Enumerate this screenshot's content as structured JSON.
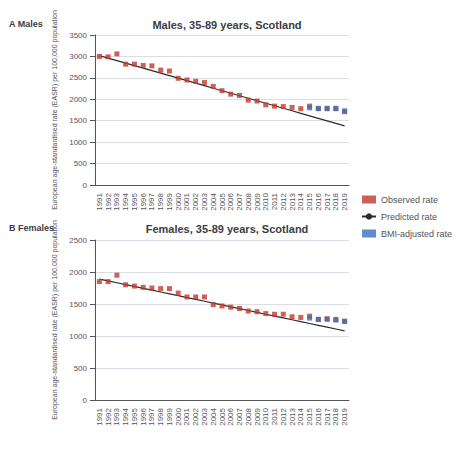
{
  "chart_data": [
    {
      "type": "line",
      "title": "Males, 35-89 years, Scotland",
      "annotations": [
        "A Males"
      ],
      "ylabel": "European age-standardised rate (EASR) per 100,000 population",
      "categories": [
        "1991",
        "1992",
        "1993",
        "1994",
        "1995",
        "1996",
        "1997",
        "1998",
        "1999",
        "2000",
        "2001",
        "2002",
        "2003",
        "2004",
        "2005",
        "2006",
        "2007",
        "2008",
        "2009",
        "2010",
        "2011",
        "2012",
        "2013",
        "2014",
        "2015",
        "2016",
        "2017",
        "2018",
        "2019"
      ],
      "series": [
        {
          "name": "Observed rate",
          "type": "scatter",
          "marker": "square",
          "color": "#c0392b",
          "values": [
            3000,
            2990,
            3060,
            2820,
            2820,
            2790,
            2780,
            2680,
            2660,
            2490,
            2450,
            2420,
            2390,
            2300,
            2200,
            2120,
            2090,
            1980,
            1960,
            1870,
            1840,
            1830,
            1810,
            1780,
            1840,
            1780,
            1780,
            1780,
            1710
          ]
        },
        {
          "name": "Predicted rate",
          "type": "line",
          "line_style": "solid",
          "color": "#2c2c2c",
          "values": [
            3020,
            2961.428571,
            2902.857143,
            2844.285714,
            2785.714286,
            2727.142857,
            2668.571429,
            2610,
            2551.428571,
            2492.857143,
            2434.285714,
            2375.714286,
            2317.142857,
            2258.571429,
            2200,
            2141.428571,
            2082.857143,
            2024.285714,
            1965.714286,
            1907.142857,
            1848.571429,
            1790,
            1731.428571,
            1672.857143,
            1614.285714,
            1555.714286,
            1497.142857,
            1438.571429,
            1380
          ]
        },
        {
          "name": "BMI-adjusted rate",
          "type": "scatter",
          "marker": "square",
          "color": "#3a6fbf",
          "values": [
            null,
            null,
            null,
            null,
            null,
            null,
            null,
            null,
            null,
            null,
            null,
            null,
            null,
            null,
            null,
            null,
            null,
            null,
            null,
            null,
            null,
            null,
            null,
            null,
            1800,
            1790,
            1790,
            1790,
            1730
          ]
        }
      ],
      "ylim": [
        0,
        3500
      ],
      "yticks": [
        0,
        500,
        1000,
        1500,
        2000,
        2500,
        3000,
        3500
      ],
      "grid": true,
      "legend": "right"
    },
    {
      "type": "line",
      "title": "Females, 35-89 years, Scotland",
      "annotations": [
        "B Females"
      ],
      "ylabel": "European age-standardised rate (EASR) per 100,000 population",
      "categories": [
        "1991",
        "1992",
        "1993",
        "1994",
        "1995",
        "1996",
        "1997",
        "1998",
        "1999",
        "2000",
        "2001",
        "2002",
        "2003",
        "2004",
        "2005",
        "2006",
        "2007",
        "2008",
        "2009",
        "2010",
        "2011",
        "2012",
        "2013",
        "2014",
        "2015",
        "2016",
        "2017",
        "2018",
        "2019"
      ],
      "series": [
        {
          "name": "Observed rate",
          "type": "scatter",
          "marker": "square",
          "color": "#c0392b",
          "values": [
            1850,
            1850,
            1950,
            1800,
            1780,
            1760,
            1750,
            1740,
            1740,
            1670,
            1610,
            1610,
            1610,
            1490,
            1470,
            1450,
            1430,
            1390,
            1380,
            1350,
            1340,
            1340,
            1300,
            1290,
            1310,
            1260,
            1270,
            1260,
            1230
          ]
        },
        {
          "name": "Predicted rate",
          "type": "line",
          "line_style": "solid",
          "color": "#2c2c2c",
          "values": [
            1890,
            1861.071429,
            1832.142857,
            1803.214286,
            1774.285714,
            1745.357143,
            1716.428571,
            1687.5,
            1658.571429,
            1629.642857,
            1600.714286,
            1571.785714,
            1542.857143,
            1513.928571,
            1485,
            1456.071429,
            1427.142857,
            1398.214286,
            1369.285714,
            1340.357143,
            1311.428571,
            1282.5,
            1253.571429,
            1224.642857,
            1195.714286,
            1166.785714,
            1137.857143,
            1108.928571,
            1080
          ]
        },
        {
          "name": "BMI-adjusted rate",
          "type": "scatter",
          "marker": "square",
          "color": "#3a6fbf",
          "values": [
            null,
            null,
            null,
            null,
            null,
            null,
            null,
            null,
            null,
            null,
            null,
            null,
            null,
            null,
            null,
            null,
            null,
            null,
            null,
            null,
            null,
            null,
            null,
            null,
            1280,
            1260,
            1260,
            1250,
            1230
          ]
        }
      ],
      "ylim": [
        0,
        2500
      ],
      "yticks": [
        0,
        500,
        1000,
        1500,
        2000,
        2500
      ],
      "grid": true
    }
  ]
}
